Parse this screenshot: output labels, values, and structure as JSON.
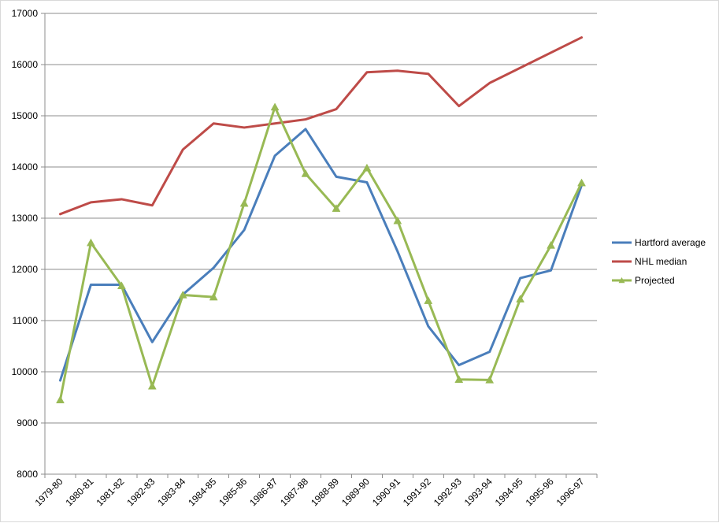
{
  "chart_data": {
    "type": "line",
    "title": "",
    "xlabel": "",
    "ylabel": "",
    "ylim": [
      8000,
      17000
    ],
    "yticks": [
      8000,
      9000,
      10000,
      11000,
      12000,
      13000,
      14000,
      15000,
      16000,
      17000
    ],
    "grid": true,
    "legend_position": "right",
    "categories": [
      "1979-80",
      "1980-81",
      "1981-82",
      "1982-83",
      "1983-84",
      "1984-85",
      "1985-86",
      "1986-87",
      "1987-88",
      "1988-89",
      "1989-90",
      "1990-91",
      "1991-92",
      "1992-93",
      "1993-94",
      "1994-95",
      "1995-96",
      "1996-97"
    ],
    "series": [
      {
        "name": "Hartford average",
        "color": "#4a7ebb",
        "marker": "none",
        "values": [
          9830,
          11700,
          11700,
          10580,
          11510,
          12030,
          12770,
          14220,
          14740,
          13810,
          13700,
          12350,
          10890,
          10130,
          10390,
          11830,
          11980,
          13640
        ]
      },
      {
        "name": "NHL median",
        "color": "#be4b48",
        "marker": "none",
        "values": [
          13080,
          13310,
          13370,
          13250,
          14340,
          14850,
          14770,
          14850,
          14930,
          15130,
          15850,
          15880,
          15820,
          15190,
          15640,
          null,
          null,
          16530
        ]
      },
      {
        "name": "Projected",
        "color": "#98b954",
        "marker": "triangle",
        "values": [
          9450,
          12520,
          11680,
          9720,
          11500,
          11460,
          13290,
          15170,
          13870,
          13190,
          13980,
          12950,
          11390,
          9850,
          9840,
          11420,
          12470,
          13690
        ]
      }
    ]
  }
}
